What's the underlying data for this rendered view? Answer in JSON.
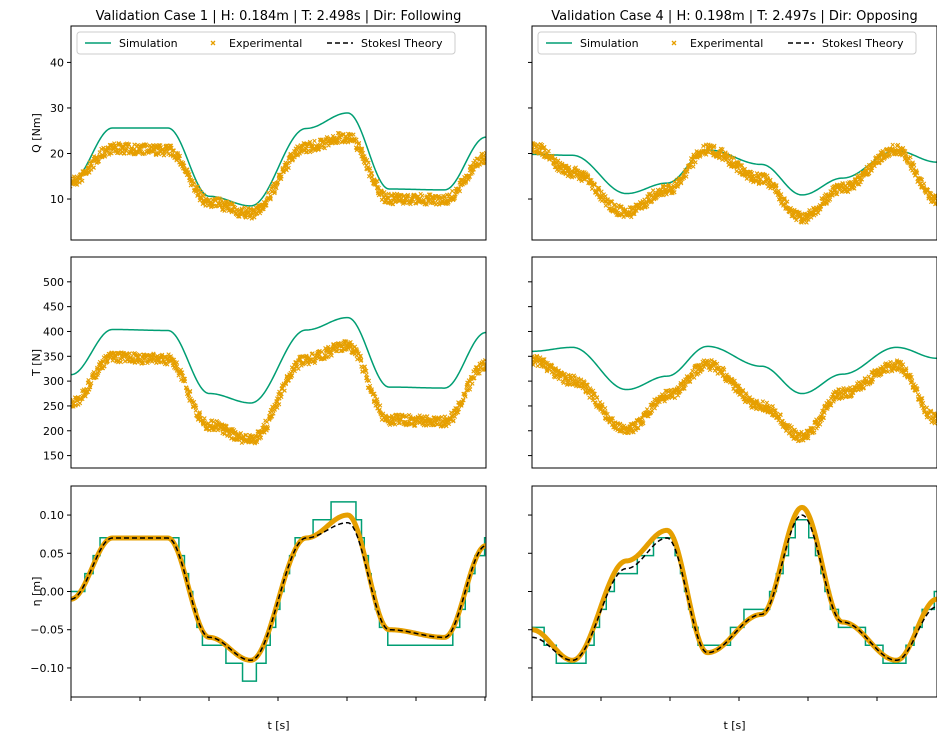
{
  "colors": {
    "simulation": "#009E73",
    "experimental": "#E69F00",
    "theory": "#000000"
  },
  "legend": {
    "simulation": "Simulation",
    "experimental": "Experimental",
    "theory": "StokesI Theory"
  },
  "chart_data": [
    {
      "type": "line",
      "title": "Validation Case 1 | H: 0.184m | T: 2.498s | Dir: Following",
      "xlabel": "t [s]",
      "legend_position": "top",
      "grid": false,
      "panels": [
        {
          "ylabel": "Q [Nm]",
          "ylim": [
            1,
            48
          ],
          "yticks": [
            "10",
            "20",
            "30",
            "40"
          ],
          "series": [
            {
              "name": "Simulation",
              "style": "line",
              "x": [
                0,
                0.3,
                0.7,
                1.0,
                1.3,
                1.7,
                2.0,
                2.3,
                2.7,
                3.0
              ],
              "values": [
                13.8,
                25.6,
                25.6,
                10.6,
                8.5,
                25.5,
                28.9,
                12.2,
                12.0,
                23.6
              ]
            },
            {
              "name": "Experimental",
              "style": "markers",
              "x": [
                0,
                0.3,
                0.7,
                1.0,
                1.3,
                1.7,
                2.0,
                2.3,
                2.7,
                3.0
              ],
              "values": [
                13.8,
                21.1,
                20.7,
                9.3,
                6.8,
                21.4,
                23.6,
                10.0,
                9.9,
                19.0
              ]
            }
          ]
        },
        {
          "ylabel": "T [N]",
          "ylim": [
            125,
            550
          ],
          "yticks": [
            "150",
            "200",
            "250",
            "300",
            "350",
            "400",
            "450",
            "500"
          ],
          "series": [
            {
              "name": "Simulation",
              "style": "line",
              "x": [
                0,
                0.3,
                0.7,
                1.0,
                1.3,
                1.7,
                2.0,
                2.3,
                2.7,
                3.0
              ],
              "values": [
                313,
                404,
                402,
                275,
                256,
                403,
                428,
                288,
                286,
                398
              ]
            },
            {
              "name": "Experimental",
              "style": "markers",
              "x": [
                0,
                0.3,
                0.7,
                1.0,
                1.3,
                1.7,
                2.0,
                2.3,
                2.7,
                3.0
              ],
              "values": [
                255,
                348,
                344,
                211,
                182,
                344,
                371,
                222,
                219,
                333
              ]
            }
          ]
        },
        {
          "ylabel": "η [m]",
          "ylim": [
            -0.138,
            0.138
          ],
          "yticks": [
            "−0.10",
            "−0.05",
            "0.00",
            "0.05",
            "0.10"
          ],
          "series": [
            {
              "name": "Simulation",
              "style": "step",
              "x": [
                0,
                0.3,
                0.7,
                1.0,
                1.3,
                1.7,
                2.0,
                2.3,
                2.7,
                3.0
              ],
              "values": [
                -0.01,
                0.08,
                0.08,
                -0.07,
                -0.11,
                0.08,
                0.12,
                -0.06,
                -0.07,
                0.06
              ]
            },
            {
              "name": "Experimental",
              "style": "thick",
              "x": [
                0,
                0.3,
                0.7,
                1.0,
                1.3,
                1.7,
                2.0,
                2.3,
                2.7,
                3.0
              ],
              "values": [
                -0.01,
                0.07,
                0.07,
                -0.06,
                -0.09,
                0.07,
                0.1,
                -0.05,
                -0.06,
                0.06
              ]
            },
            {
              "name": "StokesI Theory",
              "style": "dashed",
              "x": [
                0,
                0.3,
                0.7,
                1.0,
                1.3,
                1.7,
                2.0,
                2.3,
                2.7,
                3.0
              ],
              "values": [
                -0.01,
                0.07,
                0.07,
                -0.06,
                -0.09,
                0.07,
                0.09,
                -0.05,
                -0.06,
                0.06
              ]
            }
          ]
        }
      ]
    },
    {
      "type": "line",
      "title": "Validation Case 4 | H: 0.198m | T: 2.497s | Dir: Opposing",
      "xlabel": "t [s]",
      "legend_position": "top",
      "grid": false,
      "panels": [
        {
          "ylabel": "",
          "ylim": [
            1,
            48
          ],
          "yticks": [],
          "series": [
            {
              "name": "Simulation",
              "style": "line",
              "x": [
                0,
                0.3,
                0.7,
                1.0,
                1.3,
                1.7,
                2.0,
                2.3,
                2.7,
                3.0
              ],
              "values": [
                19.8,
                19.6,
                11.2,
                13.5,
                20.8,
                17.6,
                10.9,
                14.6,
                20.6,
                18.1
              ]
            },
            {
              "name": "Experimental",
              "style": "markers",
              "x": [
                0,
                0.3,
                0.7,
                1.0,
                1.3,
                1.7,
                2.0,
                2.3,
                2.7,
                3.0
              ],
              "values": [
                21.5,
                15.8,
                7.0,
                12.0,
                20.9,
                14.4,
                5.8,
                12.4,
                20.9,
                10.0
              ]
            }
          ]
        },
        {
          "ylabel": "",
          "ylim": [
            125,
            550
          ],
          "yticks": [],
          "series": [
            {
              "name": "Simulation",
              "style": "line",
              "x": [
                0,
                0.3,
                0.7,
                1.0,
                1.3,
                1.7,
                2.0,
                2.3,
                2.7,
                3.0
              ],
              "values": [
                360,
                368,
                283,
                310,
                370,
                330,
                275,
                314,
                368,
                346
              ]
            },
            {
              "name": "Experimental",
              "style": "markers",
              "x": [
                0,
                0.3,
                0.7,
                1.0,
                1.3,
                1.7,
                2.0,
                2.3,
                2.7,
                3.0
              ],
              "values": [
                342,
                301,
                201,
                270,
                333,
                250,
                188,
                276,
                331,
                223
              ]
            }
          ]
        },
        {
          "ylabel": "",
          "ylim": [
            -0.138,
            0.138
          ],
          "yticks": [],
          "series": [
            {
              "name": "Simulation",
              "style": "step",
              "x": [
                0,
                0.3,
                0.7,
                1.0,
                1.3,
                1.7,
                2.0,
                2.3,
                2.7,
                3.0
              ],
              "values": [
                -0.05,
                -0.1,
                0.03,
                0.07,
                -0.08,
                -0.02,
                0.09,
                -0.04,
                -0.09,
                -0.01
              ]
            },
            {
              "name": "Experimental",
              "style": "thick",
              "x": [
                0,
                0.3,
                0.7,
                1.0,
                1.3,
                1.7,
                2.0,
                2.3,
                2.7,
                3.0
              ],
              "values": [
                -0.05,
                -0.09,
                0.04,
                0.08,
                -0.08,
                -0.03,
                0.11,
                -0.04,
                -0.09,
                -0.01
              ]
            },
            {
              "name": "StokesI Theory",
              "style": "dashed",
              "x": [
                0,
                0.3,
                0.7,
                1.0,
                1.3,
                1.7,
                2.0,
                2.3,
                2.7,
                3.0
              ],
              "values": [
                -0.06,
                -0.09,
                0.03,
                0.07,
                -0.08,
                -0.03,
                0.1,
                -0.04,
                -0.09,
                -0.02
              ]
            }
          ]
        }
      ]
    }
  ]
}
